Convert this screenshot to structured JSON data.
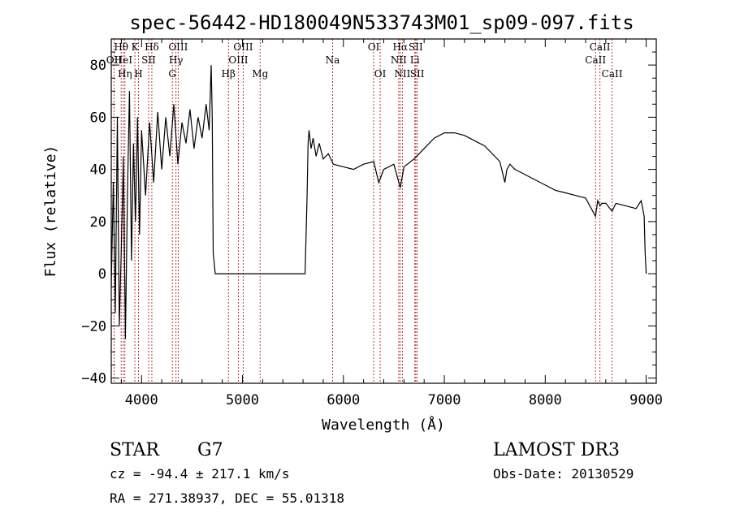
{
  "chart_data": {
    "type": "line",
    "title": "spec-56442-HD180049N533743M01_sp09-097.fits",
    "xlabel": "Wavelength (Å)",
    "ylabel": "Flux (relative)",
    "xlim": [
      3700,
      9100
    ],
    "ylim": [
      -42,
      90
    ],
    "xticks": [
      4000,
      5000,
      6000,
      7000,
      8000,
      9000
    ],
    "yticks": [
      -40,
      -20,
      0,
      20,
      40,
      60,
      80
    ],
    "grid": false,
    "series": [
      {
        "name": "flux",
        "x": [
          3700,
          3720,
          3740,
          3760,
          3780,
          3800,
          3820,
          3840,
          3860,
          3880,
          3900,
          3920,
          3940,
          3960,
          3980,
          4000,
          4040,
          4080,
          4120,
          4160,
          4200,
          4240,
          4280,
          4320,
          4360,
          4400,
          4440,
          4480,
          4520,
          4560,
          4600,
          4640,
          4670,
          4690,
          4700,
          4710,
          4730,
          5000,
          5300,
          5620,
          5640,
          5650,
          5660,
          5680,
          5700,
          5730,
          5760,
          5800,
          5850,
          5900,
          6000,
          6100,
          6200,
          6300,
          6350,
          6400,
          6500,
          6563,
          6600,
          6700,
          6800,
          6900,
          7000,
          7100,
          7200,
          7300,
          7400,
          7500,
          7550,
          7600,
          7620,
          7650,
          7700,
          7800,
          7900,
          8000,
          8100,
          8200,
          8300,
          8400,
          8498,
          8520,
          8542,
          8560,
          8600,
          8662,
          8700,
          8800,
          8900,
          8950,
          8980,
          8990,
          9000
        ],
        "y": [
          -5,
          35,
          -15,
          60,
          -20,
          10,
          45,
          -25,
          30,
          70,
          5,
          50,
          20,
          60,
          15,
          55,
          30,
          58,
          35,
          62,
          40,
          60,
          45,
          65,
          42,
          58,
          50,
          63,
          48,
          60,
          52,
          65,
          55,
          80,
          60,
          8,
          0,
          0,
          0,
          0,
          30,
          50,
          55,
          48,
          52,
          45,
          50,
          44,
          46,
          42,
          41,
          40,
          42,
          43,
          35,
          40,
          42,
          33,
          41,
          44,
          48,
          52,
          54,
          54,
          53,
          51,
          49,
          45,
          43,
          35,
          40,
          42,
          40,
          38,
          36,
          34,
          32,
          31,
          30,
          29,
          22,
          28,
          26,
          27,
          27,
          24,
          27,
          26,
          25,
          28,
          22,
          8,
          0
        ]
      }
    ],
    "line_markers": [
      {
        "label": "Hθ",
        "x": 3798,
        "row": 1
      },
      {
        "label": "OII",
        "x": 3727,
        "row": 2
      },
      {
        "label": "HeI",
        "x": 3820,
        "row": 2
      },
      {
        "label": "Hη",
        "x": 3835,
        "row": 3
      },
      {
        "label": "K",
        "x": 3934,
        "row": 1
      },
      {
        "label": "H",
        "x": 3969,
        "row": 3
      },
      {
        "label": "SII",
        "x": 4070,
        "row": 2
      },
      {
        "label": "Hδ",
        "x": 4102,
        "row": 1
      },
      {
        "label": "OIII",
        "x": 4363,
        "row": 1
      },
      {
        "label": "Hγ",
        "x": 4341,
        "row": 2
      },
      {
        "label": "G",
        "x": 4305,
        "row": 3
      },
      {
        "label": "Hβ",
        "x": 4861,
        "row": 3
      },
      {
        "label": "OIII",
        "x": 4959,
        "row": 2
      },
      {
        "label": "OIII",
        "x": 5007,
        "row": 1
      },
      {
        "label": "Mg",
        "x": 5175,
        "row": 3
      },
      {
        "label": "Na",
        "x": 5893,
        "row": 2
      },
      {
        "label": "OI",
        "x": 6300,
        "row": 1
      },
      {
        "label": "OI",
        "x": 6364,
        "row": 3
      },
      {
        "label": "NII",
        "x": 6548,
        "row": 2
      },
      {
        "label": "Hα",
        "x": 6563,
        "row": 1
      },
      {
        "label": "NII",
        "x": 6584,
        "row": 3
      },
      {
        "label": "Li",
        "x": 6708,
        "row": 2
      },
      {
        "label": "SII",
        "x": 6717,
        "row": 1
      },
      {
        "label": "SII",
        "x": 6731,
        "row": 3
      },
      {
        "label": "CaII",
        "x": 8498,
        "row": 2
      },
      {
        "label": "CaII",
        "x": 8542,
        "row": 1
      },
      {
        "label": "CaII",
        "x": 8662,
        "row": 3
      }
    ]
  },
  "info": {
    "object_class": "STAR",
    "subclass": "G7",
    "survey": "LAMOST DR3",
    "redshift_line": "cz = -94.4 ± 217.1 km/s",
    "obs_date_line": "Obs-Date: 20130529",
    "coords_line": "RA = 271.38937, DEC =  55.01318"
  }
}
